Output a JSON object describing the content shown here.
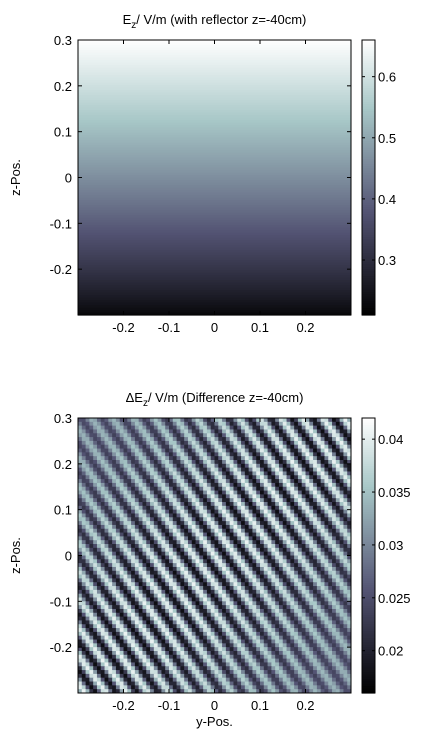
{
  "chart_data": [
    {
      "type": "heatmap",
      "title_prefix": "E",
      "title_sub": "z",
      "title_rest": "/ V/m (with reflector z=-40cm)",
      "xlabel": "",
      "ylabel": "z-Pos.",
      "xlim": [
        -0.3,
        0.3
      ],
      "ylim": [
        -0.3,
        0.3
      ],
      "x_ticks": [
        -0.2,
        -0.1,
        0,
        0.1,
        0.2
      ],
      "x_tick_labels": [
        "-0.2",
        "-0.1",
        "0",
        "0.1",
        "0.2"
      ],
      "y_ticks": [
        0.3,
        0.2,
        0.1,
        0,
        -0.1,
        -0.2
      ],
      "y_tick_labels": [
        "0.3",
        "0.2",
        "0.1",
        "0",
        "-0.1",
        "-0.2"
      ],
      "grid": false,
      "colormap": "bone",
      "colorbar": {
        "range": [
          0.21,
          0.66
        ],
        "ticks": [
          0.6,
          0.5,
          0.4,
          0.3
        ],
        "tick_labels": [
          "0.6",
          "0.5",
          "0.4",
          "0.3"
        ]
      },
      "field": "vertical gradient; value rises from about 0.21 at z=-0.3 to about 0.66 at z=0.3"
    },
    {
      "type": "heatmap",
      "title_prefix": "ΔE",
      "title_sub": "z",
      "title_rest": "/ V/m (Difference z=-40cm)",
      "xlabel": "y-Pos.",
      "ylabel": "z-Pos.",
      "xlim": [
        -0.3,
        0.3
      ],
      "ylim": [
        -0.3,
        0.3
      ],
      "x_ticks": [
        -0.2,
        -0.1,
        0,
        0.1,
        0.2
      ],
      "x_tick_labels": [
        "-0.2",
        "-0.1",
        "0",
        "0.1",
        "0.2"
      ],
      "y_ticks": [
        0.3,
        0.2,
        0.1,
        0,
        -0.1,
        -0.2
      ],
      "y_tick_labels": [
        "0.3",
        "0.2",
        "0.1",
        "0",
        "-0.1",
        "-0.2"
      ],
      "grid": false,
      "colormap": "bone",
      "colorbar": {
        "range": [
          0.016,
          0.042
        ],
        "ticks": [
          0.04,
          0.035,
          0.03,
          0.025,
          0.02
        ],
        "tick_labels": [
          "0.04",
          "0.035",
          "0.03",
          "0.025",
          "0.02"
        ]
      },
      "field": "diagonal interference fringes running from upper-left to lower-right, value oscillating between about 0.018 and 0.042"
    }
  ]
}
